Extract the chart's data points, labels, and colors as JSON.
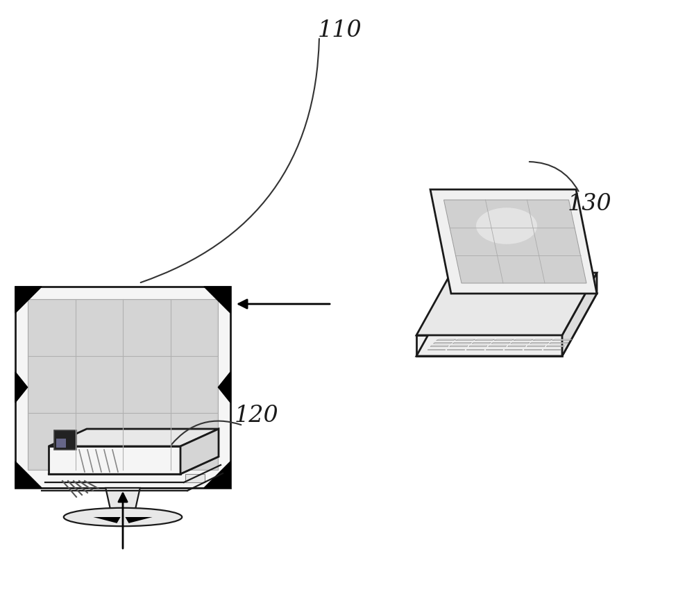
{
  "bg_color": "#ffffff",
  "label_110": "110",
  "label_120": "120",
  "label_130": "130",
  "font_size": 22,
  "line_color": "#1a1a1a",
  "line_width": 2.0,
  "screen_gray": "#c8c8c8",
  "bezel_gray": "#f0f0f0",
  "dark_gray": "#555555",
  "black": "#000000",
  "white": "#ffffff"
}
